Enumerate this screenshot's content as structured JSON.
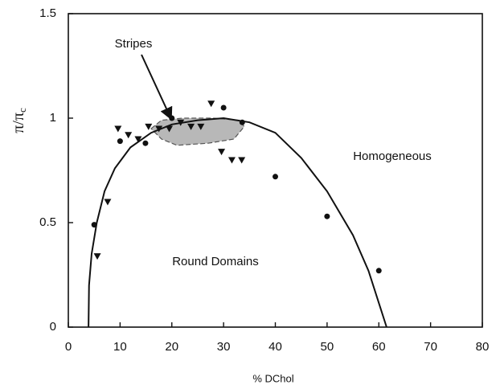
{
  "chart_data": {
    "type": "scatter",
    "xlabel": "% DChol",
    "ylabel": "π/π",
    "ylabel_subscript": "c",
    "xlim": [
      0,
      80
    ],
    "xticks": [
      0,
      10,
      20,
      30,
      40,
      50,
      60,
      70,
      80
    ],
    "ylim": [
      0,
      1.5
    ],
    "yticks": [
      0,
      0.5,
      1,
      1.5
    ],
    "grid": false,
    "series": [
      {
        "marker": "circle",
        "color": "#111111",
        "x": [
          5,
          10,
          14.9,
          20,
          30,
          33.6,
          40,
          50,
          60
        ],
        "values": [
          0.49,
          0.89,
          0.88,
          1.0,
          1.05,
          0.98,
          0.72,
          0.53,
          0.27
        ]
      },
      {
        "marker": "triangle-down",
        "color": "#111111",
        "x": [
          5.6,
          7.6,
          9.6,
          11.6,
          13.5,
          15.5,
          17.5,
          19.5,
          21.7,
          23.7,
          25.6,
          27.6,
          29.6,
          31.6,
          33.5
        ],
        "values": [
          0.34,
          0.6,
          0.95,
          0.92,
          0.9,
          0.96,
          0.95,
          0.95,
          0.98,
          0.96,
          0.96,
          1.07,
          0.84,
          0.8,
          0.8
        ]
      },
      {
        "marker": "line",
        "color": "#111111",
        "x": [
          3.9,
          4,
          4.5,
          5.5,
          7,
          9,
          12,
          16,
          20,
          25,
          30,
          35,
          40,
          45,
          50,
          55,
          58,
          61.5
        ],
        "values": [
          0,
          0.2,
          0.35,
          0.5,
          0.65,
          0.76,
          0.86,
          0.93,
          0.97,
          0.99,
          1.0,
          0.98,
          0.93,
          0.81,
          0.65,
          0.44,
          0.27,
          0
        ]
      }
    ],
    "shaded_region": {
      "color": "#b8b8b8",
      "x": [
        16,
        18,
        22,
        28,
        33,
        34,
        32,
        27,
        21,
        18
      ],
      "values": [
        0.95,
        0.99,
        1.0,
        1.0,
        0.99,
        0.96,
        0.9,
        0.88,
        0.87,
        0.9
      ]
    },
    "annotations": [
      "Stripes",
      "Homogeneous",
      "Round Domains"
    ]
  }
}
